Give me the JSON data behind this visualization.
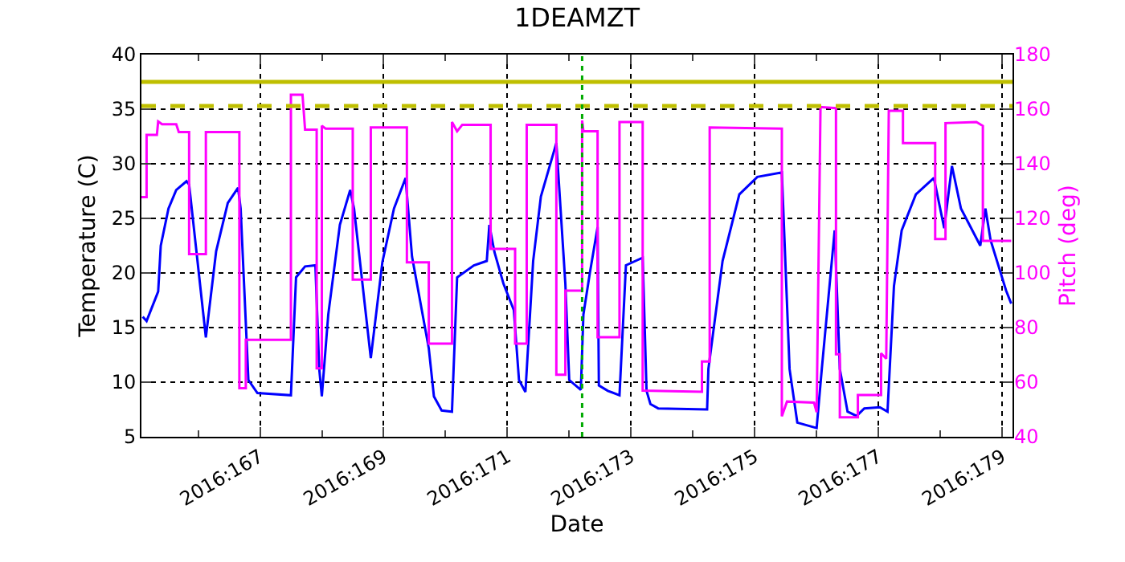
{
  "chart_data": {
    "type": "line",
    "title": "1DEAMZT",
    "xlabel": "Date",
    "ylabel": "Temperature (C)",
    "y2label": "Pitch (deg)",
    "xlim": [
      "2016-06-13T02:00",
      "2016-06-27T04:00"
    ],
    "ylim": [
      5,
      40
    ],
    "y2lim": [
      40,
      180
    ],
    "xticks": [
      {
        "value": "2016-06-14",
        "label": null
      },
      {
        "value": "2016-06-15",
        "label": "2016:167"
      },
      {
        "value": "2016-06-16",
        "label": null
      },
      {
        "value": "2016-06-17",
        "label": "2016:169"
      },
      {
        "value": "2016-06-18",
        "label": null
      },
      {
        "value": "2016-06-19",
        "label": "2016:171"
      },
      {
        "value": "2016-06-20",
        "label": null
      },
      {
        "value": "2016-06-21",
        "label": "2016:173"
      },
      {
        "value": "2016-06-22",
        "label": null
      },
      {
        "value": "2016-06-23",
        "label": "2016:175"
      },
      {
        "value": "2016-06-24",
        "label": null
      },
      {
        "value": "2016-06-25",
        "label": "2016:177"
      },
      {
        "value": "2016-06-26",
        "label": null
      },
      {
        "value": "2016-06-27",
        "label": "2016:179"
      }
    ],
    "yticks": [
      5,
      10,
      15,
      20,
      25,
      30,
      35,
      40
    ],
    "y2ticks": [
      40,
      60,
      80,
      100,
      120,
      140,
      160,
      180
    ],
    "grid": true,
    "ref_lines": [
      {
        "axis": "y",
        "value": 37.5,
        "color": "#bfbf00",
        "line_style": "solid"
      },
      {
        "axis": "y",
        "value": 35.3,
        "color": "#bfbf00",
        "line_style": "dashed"
      },
      {
        "axis": "x",
        "value": "2016-06-20T05:00",
        "color": "#00aa00",
        "line_style": "dotted"
      }
    ],
    "series": [
      {
        "color": "#0000ff",
        "x": [
          "2016-06-13T02:30",
          "2016-06-13T04:00",
          "2016-06-13T08:30",
          "2016-06-13T09:30",
          "2016-06-13T12:30",
          "2016-06-13T15:30",
          "2016-06-13T19:30",
          "2016-06-13T20:30",
          "2016-06-14T03:00",
          "2016-06-14T07:00",
          "2016-06-14T11:30",
          "2016-06-14T15:30",
          "2016-06-14T16:30",
          "2016-06-14T19:30",
          "2016-06-14T23:00",
          "2016-06-15T12:00",
          "2016-06-15T14:00",
          "2016-06-15T17:30",
          "2016-06-15T21:30",
          "2016-06-15T23:00",
          "2016-06-16T00:00",
          "2016-06-16T02:30",
          "2016-06-16T07:00",
          "2016-06-16T11:00",
          "2016-06-16T12:30",
          "2016-06-16T19:00",
          "2016-06-16T23:30",
          "2016-06-17T04:00",
          "2016-06-17T08:30",
          "2016-06-17T11:00",
          "2016-06-17T17:30",
          "2016-06-17T19:30",
          "2016-06-17T22:30",
          "2016-06-18T02:30",
          "2016-06-18T04:30",
          "2016-06-18T11:00",
          "2016-06-18T16:00",
          "2016-06-18T17:00",
          "2016-06-18T19:00",
          "2016-06-18T22:30",
          "2016-06-19T02:30",
          "2016-06-19T04:30",
          "2016-06-19T07:00",
          "2016-06-19T10:00",
          "2016-06-19T13:00",
          "2016-06-19T19:00",
          "2016-06-19T22:30",
          "2016-06-20T00:00",
          "2016-06-20T04:30",
          "2016-06-20T05:30",
          "2016-06-20T08:00",
          "2016-06-20T11:00",
          "2016-06-20T11:30",
          "2016-06-20T15:00",
          "2016-06-20T19:30",
          "2016-06-20T22:00",
          "2016-06-21T04:30",
          "2016-06-21T06:00",
          "2016-06-21T07:30",
          "2016-06-21T10:30",
          "2016-06-22T05:30",
          "2016-06-22T06:00",
          "2016-06-22T11:30",
          "2016-06-22T18:00",
          "2016-06-23T01:00",
          "2016-06-23T10:30",
          "2016-06-23T13:30",
          "2016-06-23T16:30",
          "2016-06-24T00:00",
          "2016-06-24T02:00",
          "2016-06-24T07:00",
          "2016-06-24T09:00",
          "2016-06-24T12:00",
          "2016-06-24T15:30",
          "2016-06-24T18:30",
          "2016-06-25T00:30",
          "2016-06-25T03:30",
          "2016-06-25T06:00",
          "2016-06-25T09:00",
          "2016-06-25T14:30",
          "2016-06-25T21:30",
          "2016-06-26T01:30",
          "2016-06-26T04:30",
          "2016-06-26T08:00",
          "2016-06-26T15:30",
          "2016-06-26T17:30",
          "2016-06-26T19:30",
          "2016-06-27T01:30",
          "2016-06-27T03:30"
        ],
        "values": [
          16.0,
          15.6,
          18.3,
          22.5,
          25.9,
          27.6,
          28.4,
          28.1,
          14.1,
          22.0,
          26.4,
          27.8,
          25.9,
          10.2,
          9.0,
          8.8,
          19.6,
          20.6,
          20.7,
          11.2,
          8.7,
          16.2,
          24.4,
          27.6,
          25.9,
          12.2,
          21.0,
          25.9,
          28.7,
          21.5,
          13.1,
          8.7,
          7.4,
          7.3,
          19.6,
          20.7,
          21.1,
          24.4,
          21.9,
          19.0,
          16.6,
          10.2,
          9.1,
          21.1,
          27.0,
          31.9,
          19.0,
          10.2,
          9.3,
          16.2,
          20.0,
          24.2,
          9.7,
          9.2,
          8.8,
          20.7,
          21.4,
          9.2,
          8.0,
          7.6,
          7.5,
          11.2,
          21.1,
          27.2,
          28.8,
          29.2,
          11.2,
          6.3,
          5.8,
          11.2,
          23.9,
          11.2,
          7.3,
          6.9,
          7.6,
          7.7,
          7.3,
          18.8,
          23.9,
          27.2,
          28.7,
          24.1,
          29.8,
          25.9,
          22.5,
          25.9,
          23.0,
          18.4,
          17.2
        ]
      },
      {
        "color": "#ff00ff",
        "axis": "y2",
        "x": [
          "2016-06-13T02:00",
          "2016-06-13T04:00",
          "2016-06-13T04:00",
          "2016-06-13T08:00",
          "2016-06-13T08:30",
          "2016-06-13T10:00",
          "2016-06-13T15:30",
          "2016-06-13T16:30",
          "2016-06-13T20:30",
          "2016-06-13T20:30",
          "2016-06-14T03:00",
          "2016-06-14T03:00",
          "2016-06-14T16:00",
          "2016-06-14T16:00",
          "2016-06-14T18:30",
          "2016-06-14T18:30",
          "2016-06-15T12:00",
          "2016-06-15T12:00",
          "2016-06-15T16:30",
          "2016-06-15T17:30",
          "2016-06-15T22:00",
          "2016-06-15T22:00",
          "2016-06-16T00:00",
          "2016-06-16T00:00",
          "2016-06-16T01:30",
          "2016-06-16T12:00",
          "2016-06-16T12:00",
          "2016-06-16T19:00",
          "2016-06-16T19:00",
          "2016-06-17T09:00",
          "2016-06-17T09:00",
          "2016-06-17T17:30",
          "2016-06-17T17:30",
          "2016-06-18T02:30",
          "2016-06-18T02:30",
          "2016-06-18T04:30",
          "2016-06-18T06:30",
          "2016-06-18T17:30",
          "2016-06-18T17:30",
          "2016-06-19T03:00",
          "2016-06-19T03:00",
          "2016-06-19T07:30",
          "2016-06-19T07:30",
          "2016-06-19T19:00",
          "2016-06-19T19:00",
          "2016-06-19T22:30",
          "2016-06-19T22:30",
          "2016-06-20T05:00",
          "2016-06-20T05:00",
          "2016-06-20T05:30",
          "2016-06-20T11:00",
          "2016-06-20T11:00",
          "2016-06-20T19:30",
          "2016-06-20T19:30",
          "2016-06-21T04:30",
          "2016-06-21T04:30",
          "2016-06-22T03:30",
          "2016-06-22T03:30",
          "2016-06-22T06:30",
          "2016-06-22T06:30",
          "2016-06-23T10:30",
          "2016-06-23T10:30",
          "2016-06-23T12:30",
          "2016-06-23T23:00",
          "2016-06-24T00:00",
          "2016-06-24T01:30",
          "2016-06-24T07:30",
          "2016-06-24T07:30",
          "2016-06-24T09:00",
          "2016-06-24T09:00",
          "2016-06-24T16:00",
          "2016-06-24T16:00",
          "2016-06-25T01:00",
          "2016-06-25T01:00",
          "2016-06-25T03:00",
          "2016-06-25T04:00",
          "2016-06-25T09:30",
          "2016-06-25T09:30",
          "2016-06-25T22:00",
          "2016-06-25T22:00",
          "2016-06-26T02:00",
          "2016-06-26T02:00",
          "2016-06-26T14:00",
          "2016-06-26T16:30",
          "2016-06-26T16:30",
          "2016-06-27T03:30"
        ],
        "values": [
          127.8,
          127.8,
          150.6,
          150.6,
          155.5,
          154.5,
          154.5,
          151.6,
          151.6,
          106.9,
          106.9,
          151.6,
          151.6,
          57.8,
          57.8,
          75.5,
          75.5,
          165.3,
          165.3,
          152.5,
          152.5,
          65.1,
          65.1,
          153.9,
          152.9,
          152.9,
          97.6,
          97.6,
          153.3,
          153.3,
          103.9,
          103.9,
          74.1,
          74.1,
          155.3,
          151.9,
          154.3,
          154.3,
          108.8,
          108.8,
          74.1,
          74.1,
          154.3,
          154.3,
          62.7,
          62.7,
          93.5,
          93.5,
          155.9,
          151.9,
          151.9,
          76.5,
          76.5,
          155.3,
          155.3,
          56.9,
          56.5,
          67.6,
          67.6,
          153.3,
          152.9,
          47.5,
          52.9,
          52.5,
          49.0,
          160.8,
          160.4,
          70.2,
          70.2,
          47.1,
          47.1,
          55.3,
          55.3,
          70.6,
          68.6,
          159.4,
          159.4,
          147.6,
          147.6,
          112.4,
          112.4,
          154.9,
          155.3,
          153.9,
          111.8,
          111.8
        ]
      }
    ]
  }
}
